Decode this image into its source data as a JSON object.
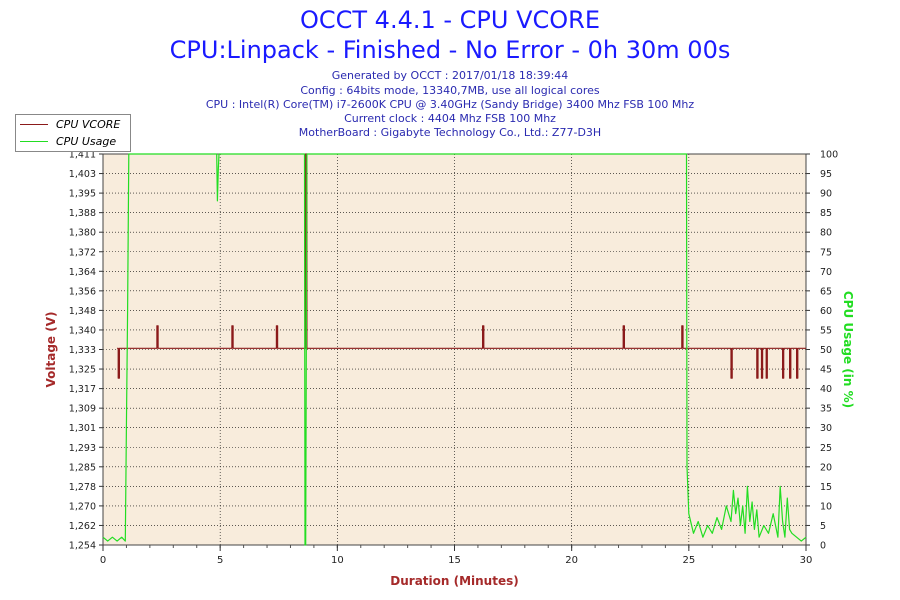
{
  "header": {
    "title": "OCCT 4.4.1 - CPU VCORE",
    "subtitle": "CPU:Linpack - Finished - No Error - 0h 30m 00s",
    "info_lines": [
      "Generated by OCCT : 2017/01/18 18:39:44",
      "Config : 64bits mode, 13340,7MB, use all logical cores",
      "CPU : Intel(R) Core(TM) i7-2600K CPU @ 3.40GHz (Sandy Bridge) 3400 Mhz FSB 100 Mhz",
      "Current clock : 4404 Mhz FSB 100 Mhz",
      "MotherBoard : Gigabyte Technology Co., Ltd.: Z77-D3H"
    ]
  },
  "legend": {
    "items": [
      {
        "label": "CPU VCORE",
        "color": "#8b1a1a"
      },
      {
        "label": "CPU Usage",
        "color": "#22dd22"
      }
    ]
  },
  "colors": {
    "plot_bg": "#f8ecdc",
    "vcore": "#8b1a1a",
    "usage": "#22dd22",
    "axis_left": "#a52a2a",
    "axis_right": "#22dd22",
    "grid": "#000000"
  },
  "chart_data": {
    "type": "line",
    "xlabel": "Duration (Minutes)",
    "ylabel_left": "Voltage (V)",
    "ylabel_right": "CPU Usage (in %)",
    "xlim": [
      0,
      30
    ],
    "xticks": [
      0,
      5,
      10,
      15,
      20,
      25,
      30
    ],
    "ylim_left": [
      1.254,
      1.411
    ],
    "yticks_left": [
      "1,254",
      "1,262",
      "1,270",
      "1,278",
      "1,285",
      "1,293",
      "1,301",
      "1,309",
      "1,317",
      "1,325",
      "1,333",
      "1,340",
      "1,348",
      "1,356",
      "1,364",
      "1,372",
      "1,380",
      "1,388",
      "1,395",
      "1,403",
      "1,411"
    ],
    "ylim_right": [
      0,
      100
    ],
    "yticks_right": [
      0,
      5,
      10,
      15,
      20,
      25,
      30,
      35,
      40,
      45,
      50,
      55,
      60,
      65,
      70,
      75,
      80,
      85,
      90,
      95,
      100
    ],
    "grid": "dotted",
    "legend_position": "top-left",
    "series": [
      {
        "name": "CPU VCORE",
        "axis": "left",
        "x": [
          0.6,
          0.65,
          0.65,
          0.7,
          0.7,
          2.3,
          2.3,
          2.35,
          2.35,
          5.5,
          5.5,
          5.55,
          5.55,
          7.4,
          7.4,
          7.45,
          7.45,
          8.65,
          8.65,
          8.7,
          8.7,
          16.2,
          16.2,
          16.25,
          16.25,
          22.2,
          22.2,
          22.25,
          22.25,
          24.7,
          24.7,
          24.75,
          24.75,
          26.8,
          26.8,
          26.85,
          26.85,
          26.9,
          26.9,
          27.9,
          27.9,
          27.95,
          27.95,
          28.1,
          28.1,
          28.15,
          28.15,
          28.3,
          28.3,
          28.35,
          28.35,
          29.0,
          29.0,
          29.05,
          29.05,
          29.3,
          29.3,
          29.35,
          29.35,
          29.6,
          29.6,
          29.65,
          29.65,
          30
        ],
        "values": [
          1.333,
          1.333,
          1.321,
          1.321,
          1.333,
          1.333,
          1.342,
          1.342,
          1.333,
          1.333,
          1.342,
          1.342,
          1.333,
          1.333,
          1.342,
          1.342,
          1.333,
          1.333,
          1.411,
          1.411,
          1.333,
          1.333,
          1.342,
          1.342,
          1.333,
          1.333,
          1.342,
          1.342,
          1.333,
          1.333,
          1.342,
          1.342,
          1.333,
          1.333,
          1.321,
          1.321,
          1.333,
          1.333,
          1.333,
          1.333,
          1.321,
          1.321,
          1.333,
          1.333,
          1.321,
          1.321,
          1.333,
          1.333,
          1.321,
          1.321,
          1.333,
          1.333,
          1.321,
          1.321,
          1.333,
          1.333,
          1.321,
          1.321,
          1.333,
          1.333,
          1.321,
          1.321,
          1.333,
          1.333
        ]
      },
      {
        "name": "CPU Usage",
        "axis": "right",
        "x": [
          0,
          0.2,
          0.4,
          0.6,
          0.8,
          0.95,
          1.0,
          1.05,
          1.1,
          4.85,
          4.88,
          4.92,
          4.95,
          5.0,
          8.6,
          8.62,
          8.65,
          8.7,
          8.72,
          24.9,
          24.92,
          25.0,
          25.2,
          25.4,
          25.6,
          25.8,
          26.0,
          26.2,
          26.4,
          26.6,
          26.8,
          26.9,
          27.0,
          27.1,
          27.2,
          27.3,
          27.4,
          27.5,
          27.6,
          27.7,
          27.8,
          27.9,
          28.0,
          28.2,
          28.4,
          28.6,
          28.8,
          28.9,
          29.0,
          29.1,
          29.2,
          29.3,
          29.4,
          29.6,
          29.8,
          30
        ],
        "values": [
          2,
          1,
          2,
          1,
          2,
          1,
          30,
          60,
          100,
          100,
          88,
          96,
          100,
          100,
          100,
          0,
          0,
          100,
          100,
          100,
          20,
          8,
          3,
          6,
          2,
          5,
          3,
          7,
          4,
          10,
          6,
          14,
          8,
          12,
          5,
          10,
          3,
          15,
          6,
          11,
          4,
          9,
          2,
          5,
          3,
          8,
          2,
          15,
          6,
          2,
          12,
          4,
          3,
          2,
          1,
          2
        ]
      }
    ]
  }
}
